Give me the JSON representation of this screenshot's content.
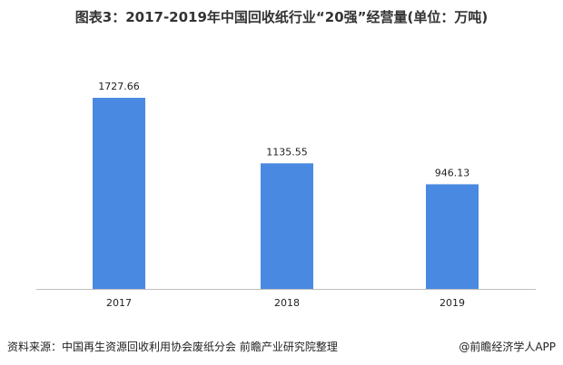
{
  "chart_data": {
    "type": "bar",
    "title": "图表3：2017-2019年中国回收纸行业“20强”经营量(单位：万吨)",
    "categories": [
      "2017",
      "2018",
      "2019"
    ],
    "values": [
      1727.66,
      1135.55,
      946.13
    ],
    "data_labels": [
      "1727.66",
      "1135.55",
      "946.13"
    ],
    "xlabel": "",
    "ylabel": "",
    "ylim": [
      0,
      2200
    ],
    "grid": false,
    "bar_color": "#4a89e1"
  },
  "footer": {
    "source": "资料来源：中国再生资源回收利用协会废纸分会 前瞻产业研究院整理",
    "credit": "@前瞻经济学人APP"
  }
}
